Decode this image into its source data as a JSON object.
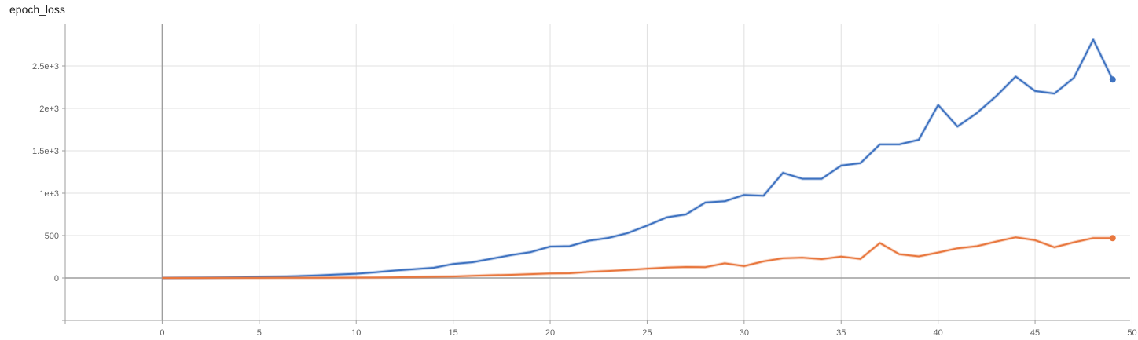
{
  "chart_data": {
    "type": "line",
    "title": "epoch_loss",
    "xlabel": "",
    "ylabel": "",
    "xlim": [
      -5,
      49.9
    ],
    "ylim": [
      -500,
      3000
    ],
    "x_ticks": [
      0,
      5,
      10,
      15,
      20,
      25,
      30,
      35,
      40,
      45,
      50
    ],
    "y_ticks": [
      0,
      500,
      1000,
      1500,
      2000,
      2500
    ],
    "y_tick_labels": [
      "0",
      "500",
      "1e+3",
      "1.5e+3",
      "2e+3",
      "2.5e+3"
    ],
    "x_tick_labels": [
      "0",
      "5",
      "10",
      "15",
      "20",
      "25",
      "30",
      "35",
      "40",
      "45",
      "50"
    ],
    "grid": true,
    "series": [
      {
        "color": "#3e72c0",
        "x": [
          0,
          1,
          2,
          3,
          4,
          5,
          6,
          7,
          8,
          9,
          10,
          11,
          12,
          13,
          14,
          15,
          16,
          17,
          18,
          19,
          20,
          21,
          22,
          23,
          24,
          25,
          26,
          27,
          28,
          29,
          30,
          31,
          32,
          33,
          34,
          35,
          36,
          37,
          38,
          39,
          40,
          41,
          42,
          43,
          44,
          45,
          46,
          47,
          48,
          49
        ],
        "values": [
          0,
          2,
          4,
          6,
          8,
          11,
          16,
          22,
          30,
          41,
          50,
          68,
          88,
          104,
          120,
          165,
          185,
          228,
          270,
          305,
          370,
          375,
          440,
          472,
          530,
          618,
          715,
          750,
          890,
          905,
          980,
          970,
          1240,
          1170,
          1170,
          1325,
          1355,
          1575,
          1575,
          1630,
          2040,
          1785,
          1945,
          2145,
          2375,
          2205,
          2175,
          2360,
          2810,
          2340
        ]
      },
      {
        "color": "#e8773e",
        "x": [
          0,
          1,
          2,
          3,
          4,
          5,
          6,
          7,
          8,
          9,
          10,
          11,
          12,
          13,
          14,
          15,
          16,
          17,
          18,
          19,
          20,
          21,
          22,
          23,
          24,
          25,
          26,
          27,
          28,
          29,
          30,
          31,
          32,
          33,
          34,
          35,
          36,
          37,
          38,
          39,
          40,
          41,
          42,
          43,
          44,
          45,
          46,
          47,
          48,
          49
        ],
        "values": [
          0,
          0,
          0,
          1,
          1,
          1,
          2,
          3,
          3,
          4,
          5,
          6,
          8,
          10,
          14,
          18,
          25,
          32,
          37,
          45,
          53,
          56,
          72,
          82,
          95,
          110,
          122,
          130,
          128,
          172,
          140,
          195,
          232,
          240,
          222,
          252,
          225,
          412,
          280,
          255,
          300,
          350,
          375,
          430,
          480,
          445,
          362,
          420,
          470,
          470
        ]
      }
    ]
  }
}
